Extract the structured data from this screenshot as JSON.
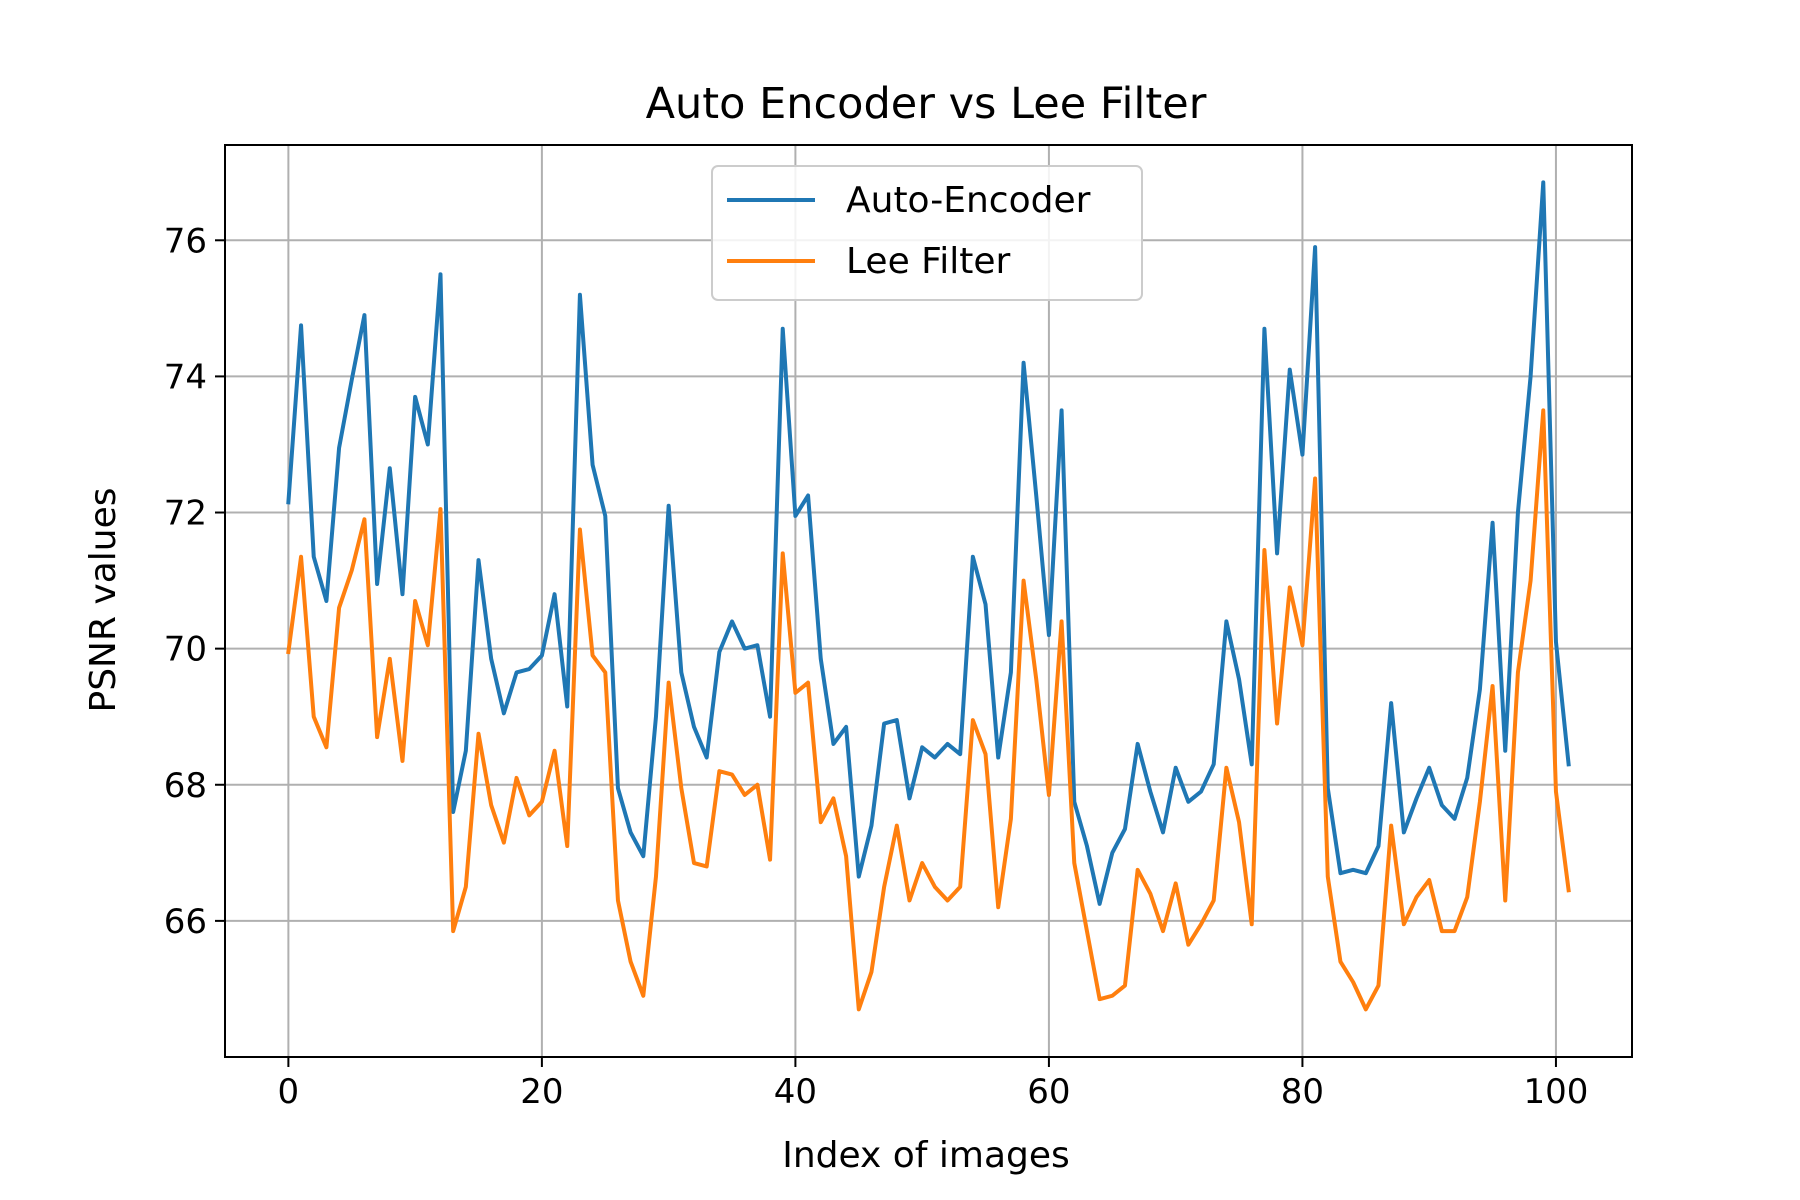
{
  "chart_data": {
    "type": "line",
    "title": "Auto Encoder vs Lee Filter",
    "xlabel": "Index of images",
    "ylabel": "PSNR values",
    "xlim": [
      -5,
      106
    ],
    "ylim": [
      64.0,
      77.4
    ],
    "xticks": [
      0,
      20,
      40,
      60,
      80,
      100
    ],
    "yticks": [
      66,
      68,
      70,
      72,
      74,
      76
    ],
    "grid": true,
    "legend_position": "top-center",
    "x": [
      0,
      1,
      2,
      3,
      4,
      5,
      6,
      7,
      8,
      9,
      10,
      11,
      12,
      13,
      14,
      15,
      16,
      17,
      18,
      19,
      20,
      21,
      22,
      23,
      24,
      25,
      26,
      27,
      28,
      29,
      30,
      31,
      32,
      33,
      34,
      35,
      36,
      37,
      38,
      39,
      40,
      41,
      42,
      43,
      44,
      45,
      46,
      47,
      48,
      49,
      50,
      51,
      52,
      53,
      54,
      55,
      56,
      57,
      58,
      59,
      60,
      61,
      62,
      63,
      64,
      65,
      66,
      67,
      68,
      69,
      70,
      71,
      72,
      73,
      74,
      75,
      76,
      77,
      78,
      79,
      80,
      81,
      82,
      83,
      84,
      85,
      86,
      87,
      88,
      89,
      90,
      91,
      92,
      93,
      94,
      95,
      96,
      97,
      98,
      99,
      100,
      101
    ],
    "series": [
      {
        "name": "Auto-Encoder",
        "color": "#1f77b4",
        "values": [
          72.15,
          74.75,
          71.35,
          70.7,
          72.95,
          73.95,
          74.9,
          70.95,
          72.65,
          70.8,
          73.7,
          73.0,
          75.5,
          67.6,
          68.5,
          71.3,
          69.85,
          69.05,
          69.65,
          69.7,
          69.9,
          70.8,
          69.15,
          75.2,
          72.7,
          71.95,
          67.95,
          67.3,
          66.95,
          69.0,
          72.1,
          69.65,
          68.85,
          68.4,
          69.95,
          70.4,
          70.0,
          70.05,
          69.0,
          74.7,
          71.95,
          72.25,
          69.85,
          68.6,
          68.85,
          66.65,
          67.4,
          68.9,
          68.95,
          67.8,
          68.55,
          68.4,
          68.6,
          68.45,
          71.35,
          70.65,
          68.4,
          69.65,
          74.2,
          72.25,
          70.2,
          73.5,
          67.75,
          67.1,
          66.25,
          67.0,
          67.35,
          68.6,
          67.9,
          67.3,
          68.25,
          67.75,
          67.9,
          68.3,
          70.4,
          69.55,
          68.3,
          74.7,
          71.4,
          74.1,
          72.85,
          75.9,
          67.95,
          66.7,
          66.75,
          66.7,
          67.1,
          69.2,
          67.3,
          67.8,
          68.25,
          67.7,
          67.5,
          68.1,
          69.4,
          71.85,
          68.5,
          72.0,
          74.0,
          76.85,
          70.1,
          68.3
        ]
      },
      {
        "name": "Lee Filter",
        "color": "#ff7f0e",
        "values": [
          69.95,
          71.35,
          69.0,
          68.55,
          70.6,
          71.15,
          71.9,
          68.7,
          69.85,
          68.35,
          70.7,
          70.05,
          72.05,
          65.85,
          66.5,
          68.75,
          67.7,
          67.15,
          68.1,
          67.55,
          67.75,
          68.5,
          67.1,
          71.75,
          69.9,
          69.65,
          66.3,
          65.4,
          64.9,
          66.65,
          69.5,
          67.95,
          66.85,
          66.8,
          68.2,
          68.15,
          67.85,
          68.0,
          66.9,
          71.4,
          69.35,
          69.5,
          67.45,
          67.8,
          66.95,
          64.7,
          65.25,
          66.5,
          67.4,
          66.3,
          66.85,
          66.5,
          66.3,
          66.5,
          68.95,
          68.45,
          66.2,
          67.5,
          71.0,
          69.55,
          67.85,
          70.4,
          66.85,
          65.85,
          64.85,
          64.9,
          65.05,
          66.75,
          66.4,
          65.85,
          66.55,
          65.65,
          65.95,
          66.3,
          68.25,
          67.45,
          65.95,
          71.45,
          68.9,
          70.9,
          70.05,
          72.5,
          66.65,
          65.4,
          65.1,
          64.7,
          65.05,
          67.4,
          65.95,
          66.35,
          66.6,
          65.85,
          65.85,
          66.35,
          67.75,
          69.45,
          66.3,
          69.65,
          71.0,
          73.5,
          67.9,
          66.45
        ]
      }
    ]
  }
}
